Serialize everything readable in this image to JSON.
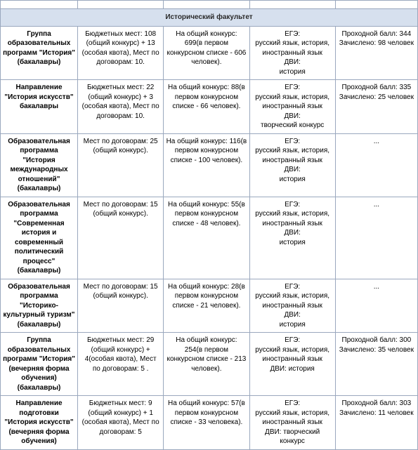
{
  "faculty_header": "Исторический факультет",
  "empty_top_row": [
    "",
    "",
    "",
    "",
    ""
  ],
  "rows": [
    {
      "c0": "Группа образовательных программ \"История\" (бакалавры)",
      "c1": "Бюджетных мест: 108 (общий конкурс) + 13 (особая квота), Мест по договорам: 10.",
      "c2": "На общий конкурс: 699(в первом конкурсном списке - 606 человек).",
      "c3": "ЕГЭ:\nрусский язык, история, иностранный язык\nДВИ:\nистория",
      "c4": "Проходной балл: 344\nЗачислено: 98 человек"
    },
    {
      "c0": "Направление \"История искусств\" бакалавры",
      "c1": "Бюджетных мест: 22 (общий конкурс) + 3 (особая квота), Мест по договорам: 10.",
      "c2": "На общий конкурс: 88(в первом конкурсном списке - 66 человек).",
      "c3": "ЕГЭ:\nрусский язык, история, иностранный язык\nДВИ:\nтворческий конкурс",
      "c4": "Проходной балл: 335\nЗачислено: 25 человек"
    },
    {
      "c0": "Образовательная программа \"История международных отношений\" (бакалавры)",
      "c1": "Мест по договорам: 25 (общий конкурс).",
      "c2": "На общий конкурс: 116(в первом конкурсном списке - 100 человек).",
      "c3": "ЕГЭ:\nрусский язык, история, иностранный язык\nДВИ:\nистория",
      "c4": "..."
    },
    {
      "c0": "Образовательная программа \"Современная история и современный политический процесс\" (бакалавры)",
      "c1": "Мест по договорам: 15 (общий конкурс).",
      "c2": "На общий конкурс: 55(в первом конкурсном списке - 48 человек).",
      "c3": "ЕГЭ:\nрусский язык, история, иностранный язык\nДВИ:\nистория",
      "c4": "..."
    },
    {
      "c0": "Образовательная программа \"Историко-культурный туризм\" (бакалавры)",
      "c1": "Мест по договорам: 15 (общий конкурс).",
      "c2": "На общий конкурс: 28(в первом конкурсном списке - 21 человек).",
      "c3": "ЕГЭ:\nрусский язык, история, иностранный язык\nДВИ:\nистория",
      "c4": "..."
    },
    {
      "c0": "Группа образовательных программ \"История\" (вечерняя форма обучения) (бакалавры)",
      "c1": "Бюджетных мест: 29 (общий конкурс) + 4(особая квота), Мест по договорам: 5 .",
      "c2": "На общий конкурс: 254(в первом конкурсном списке - 213 человек).",
      "c3": "ЕГЭ:\nрусский язык, история, иностранный язык\nДВИ: история",
      "c4": "Проходной балл: 300\nЗачислено: 35 человек"
    },
    {
      "c0": "Направление подготовки \"История искусств\" (вечерняя форма обучения)",
      "c1": "Бюджетных мест: 9 (общий конкурс) + 1 (особая квота), Мест по договорам: 5",
      "c2": "На общий конкурс: 57(в первом конкурсном списке - 33 человека).",
      "c3": "ЕГЭ:\nрусский язык, история, иностранный язык\nДВИ: творческий конкурс",
      "c4": "Проходной балл: 303\nЗачислено: 11 человек"
    }
  ]
}
